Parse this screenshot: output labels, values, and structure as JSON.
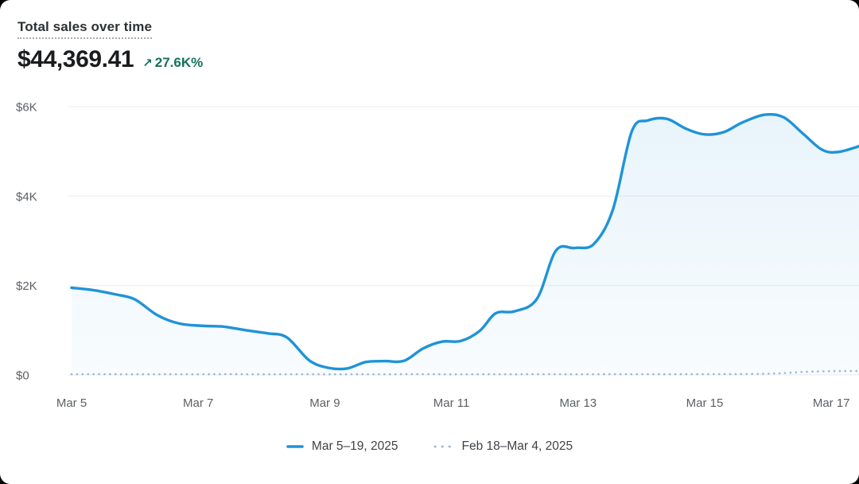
{
  "header": {
    "title": "Total sales over time",
    "value": "$44,369.41",
    "trend_arrow": "↗",
    "trend_percent": "27.6K%",
    "trend_color": "#15715a"
  },
  "chart_data": {
    "type": "line",
    "title": "Total sales over time",
    "x_domain": [
      5,
      17.45
    ],
    "y_domain": [
      0,
      6000
    ],
    "grid": true,
    "legend_position": "bottom",
    "x_axis": {
      "ticks": [
        {
          "day": 5,
          "label": "Mar 5"
        },
        {
          "day": 7,
          "label": "Mar 7"
        },
        {
          "day": 9,
          "label": "Mar 9"
        },
        {
          "day": 11,
          "label": "Mar 11"
        },
        {
          "day": 13,
          "label": "Mar 13"
        },
        {
          "day": 15,
          "label": "Mar 15"
        },
        {
          "day": 17,
          "label": "Mar 17"
        }
      ]
    },
    "y_axis": {
      "ticks": [
        {
          "value": 6000,
          "label": "$6K"
        },
        {
          "value": 4000,
          "label": "$4K"
        },
        {
          "value": 2000,
          "label": "$2K"
        },
        {
          "value": 0,
          "label": "$0"
        }
      ]
    },
    "grid_color": "#ececef",
    "series": [
      {
        "name": "Mar 5–19, 2025",
        "style": "solid",
        "color": "#1f93d8",
        "fill_top": "rgba(31,147,216,0.10)",
        "fill_bottom": "rgba(31,147,216,0.03)",
        "points": [
          [
            5.0,
            1950
          ],
          [
            5.35,
            1895
          ],
          [
            5.7,
            1800
          ],
          [
            6.0,
            1690
          ],
          [
            6.35,
            1340
          ],
          [
            6.7,
            1150
          ],
          [
            7.05,
            1100
          ],
          [
            7.4,
            1080
          ],
          [
            7.75,
            1000
          ],
          [
            8.1,
            930
          ],
          [
            8.4,
            840
          ],
          [
            8.75,
            330
          ],
          [
            9.05,
            160
          ],
          [
            9.35,
            145
          ],
          [
            9.65,
            290
          ],
          [
            9.95,
            310
          ],
          [
            10.25,
            315
          ],
          [
            10.55,
            590
          ],
          [
            10.85,
            745
          ],
          [
            11.15,
            760
          ],
          [
            11.45,
            990
          ],
          [
            11.7,
            1380
          ],
          [
            12.0,
            1425
          ],
          [
            12.35,
            1700
          ],
          [
            12.65,
            2780
          ],
          [
            12.95,
            2840
          ],
          [
            13.25,
            2930
          ],
          [
            13.55,
            3700
          ],
          [
            13.85,
            5450
          ],
          [
            14.1,
            5690
          ],
          [
            14.4,
            5730
          ],
          [
            14.7,
            5510
          ],
          [
            15.0,
            5380
          ],
          [
            15.3,
            5430
          ],
          [
            15.6,
            5650
          ],
          [
            15.95,
            5820
          ],
          [
            16.25,
            5760
          ],
          [
            16.55,
            5400
          ],
          [
            16.85,
            5040
          ],
          [
            17.1,
            4985
          ],
          [
            17.45,
            5120
          ]
        ]
      },
      {
        "name": "Feb 18–Mar 4, 2025",
        "style": "dotted",
        "color": "#9cb8d5",
        "points": [
          [
            5,
            15
          ],
          [
            5.5,
            17
          ],
          [
            6,
            14
          ],
          [
            6.5,
            16
          ],
          [
            7,
            15
          ],
          [
            7.5,
            17
          ],
          [
            8,
            14
          ],
          [
            8.5,
            16
          ],
          [
            9,
            15
          ],
          [
            9.5,
            16
          ],
          [
            10,
            15
          ],
          [
            10.5,
            17
          ],
          [
            11,
            15
          ],
          [
            11.5,
            16
          ],
          [
            12,
            15
          ],
          [
            12.5,
            17
          ],
          [
            13,
            15
          ],
          [
            13.5,
            16
          ],
          [
            14,
            18
          ],
          [
            14.5,
            16
          ],
          [
            15,
            18
          ],
          [
            15.5,
            20
          ],
          [
            16,
            28
          ],
          [
            16.3,
            45
          ],
          [
            16.6,
            72
          ],
          [
            17,
            85
          ],
          [
            17.2,
            88
          ],
          [
            17.45,
            90
          ]
        ]
      }
    ]
  }
}
